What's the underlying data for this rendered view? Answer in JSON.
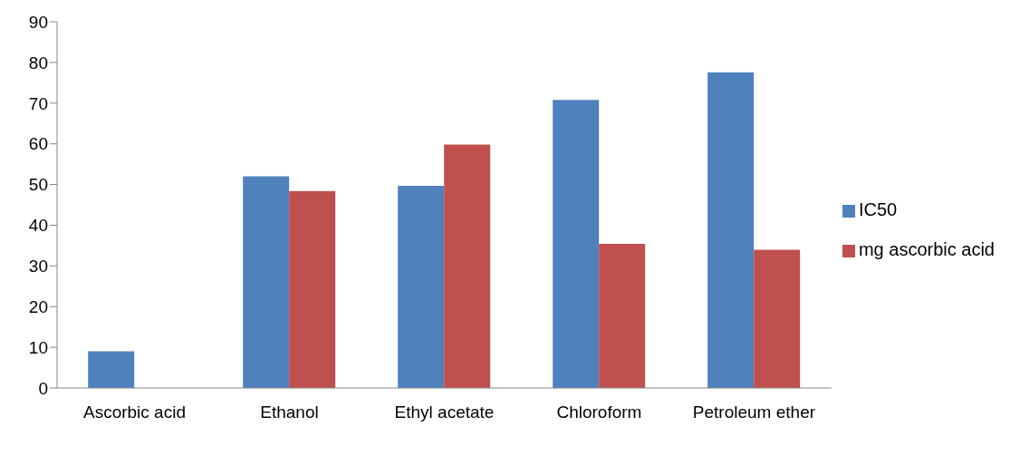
{
  "chart_data": {
    "type": "bar",
    "categories": [
      "Ascorbic acid",
      "Ethanol",
      "Ethyl acetate",
      "Chloroform",
      "Petroleum ether"
    ],
    "series": [
      {
        "name": "IC50",
        "color": "#4f81bd",
        "values": [
          9.0,
          52.0,
          49.7,
          70.8,
          77.6
        ]
      },
      {
        "name": "mg ascorbic acid",
        "color": "#c0504d",
        "values": [
          null,
          48.4,
          59.8,
          35.4,
          34.0
        ]
      }
    ],
    "ylim": [
      0,
      90
    ],
    "yticks": [
      0,
      10,
      20,
      30,
      40,
      50,
      60,
      70,
      80,
      90
    ],
    "grid": false,
    "legend": "right"
  }
}
